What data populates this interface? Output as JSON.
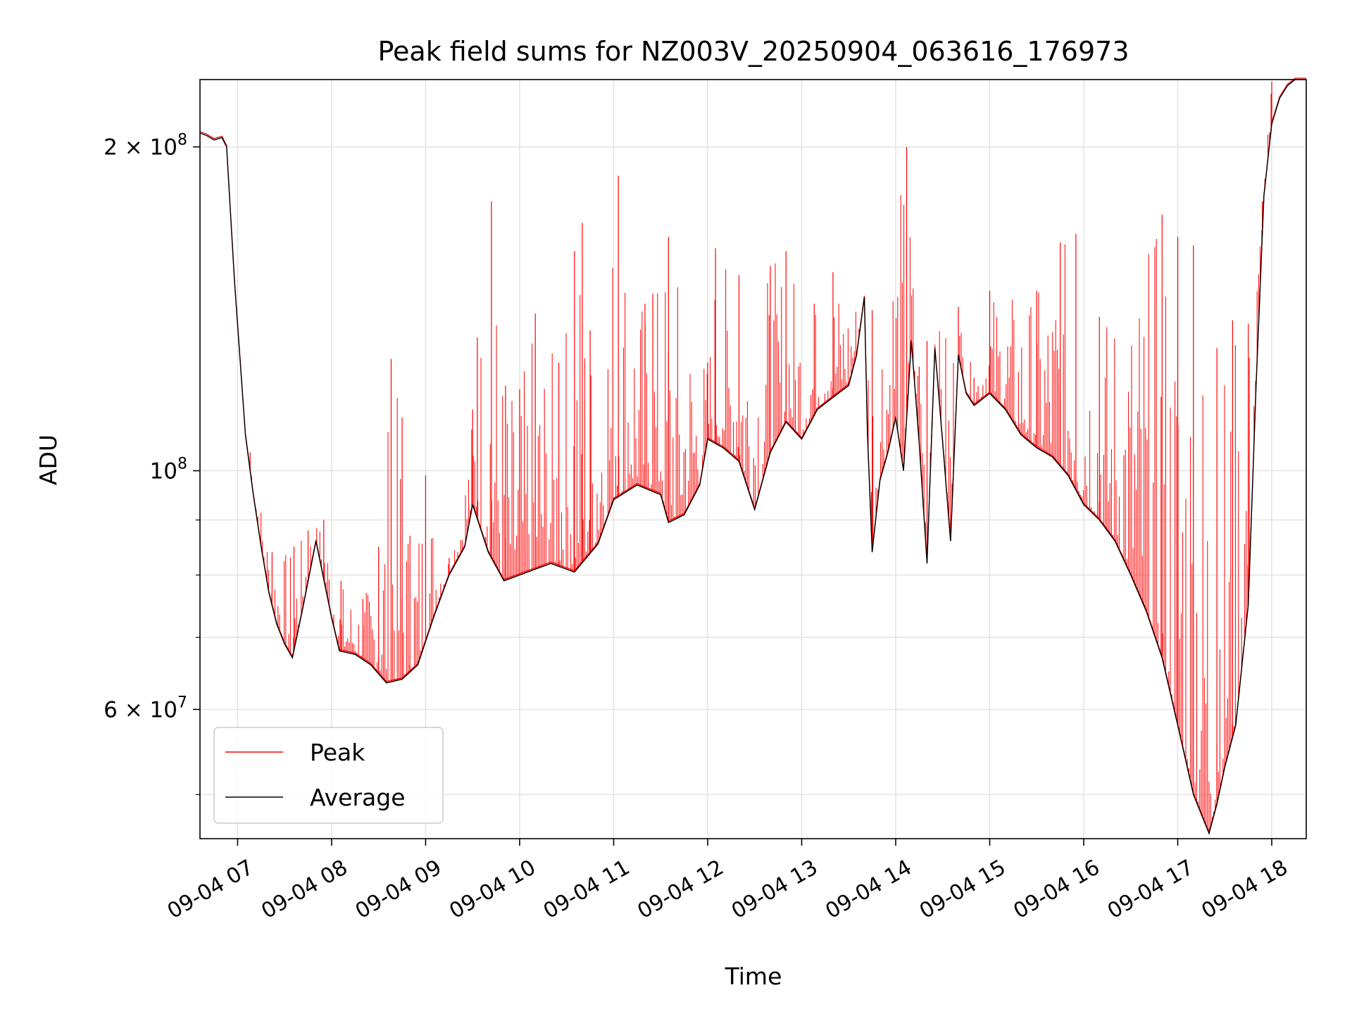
{
  "chart_data": {
    "type": "line",
    "title": "Peak field sums for NZ003V_20250904_063616_176973",
    "xlabel": "Time",
    "ylabel": "ADU",
    "y_scale": "log",
    "grid": true,
    "legend_position": "lower-left",
    "xlim": [
      "2025-09-04 06:36",
      "2025-09-04 18:22"
    ],
    "ylim": [
      45500000,
      231000000
    ],
    "x_ticks": [
      {
        "label": "09-04 07",
        "time": "2025-09-04 07:00"
      },
      {
        "label": "09-04 08",
        "time": "2025-09-04 08:00"
      },
      {
        "label": "09-04 09",
        "time": "2025-09-04 09:00"
      },
      {
        "label": "09-04 10",
        "time": "2025-09-04 10:00"
      },
      {
        "label": "09-04 11",
        "time": "2025-09-04 11:00"
      },
      {
        "label": "09-04 12",
        "time": "2025-09-04 12:00"
      },
      {
        "label": "09-04 13",
        "time": "2025-09-04 13:00"
      },
      {
        "label": "09-04 14",
        "time": "2025-09-04 14:00"
      },
      {
        "label": "09-04 15",
        "time": "2025-09-04 15:00"
      },
      {
        "label": "09-04 16",
        "time": "2025-09-04 16:00"
      },
      {
        "label": "09-04 17",
        "time": "2025-09-04 17:00"
      },
      {
        "label": "09-04 18",
        "time": "2025-09-04 18:00"
      }
    ],
    "y_major_ticks": [
      {
        "base": "2 × 10",
        "exp": "8",
        "value": 200000000
      },
      {
        "base": "10",
        "exp": "8",
        "value": 100000000
      },
      {
        "base": "6 × 10",
        "exp": "7",
        "value": 60000000
      }
    ],
    "y_minor_ticks": [
      50000000,
      70000000,
      80000000,
      90000000
    ],
    "series": [
      {
        "name": "Average",
        "color": "#000000",
        "x": [
          "2025-09-04 06:36",
          "2025-09-04 06:40",
          "2025-09-04 06:45",
          "2025-09-04 06:50",
          "2025-09-04 06:53",
          "2025-09-04 06:58",
          "2025-09-04 07:05",
          "2025-09-04 07:10",
          "2025-09-04 07:15",
          "2025-09-04 07:20",
          "2025-09-04 07:25",
          "2025-09-04 07:30",
          "2025-09-04 07:35",
          "2025-09-04 07:42",
          "2025-09-04 07:50",
          "2025-09-04 08:00",
          "2025-09-04 08:05",
          "2025-09-04 08:15",
          "2025-09-04 08:25",
          "2025-09-04 08:35",
          "2025-09-04 08:45",
          "2025-09-04 08:55",
          "2025-09-04 09:05",
          "2025-09-04 09:15",
          "2025-09-04 09:25",
          "2025-09-04 09:30",
          "2025-09-04 09:40",
          "2025-09-04 09:50",
          "2025-09-04 10:00",
          "2025-09-04 10:10",
          "2025-09-04 10:20",
          "2025-09-04 10:35",
          "2025-09-04 10:50",
          "2025-09-04 11:00",
          "2025-09-04 11:15",
          "2025-09-04 11:30",
          "2025-09-04 11:35",
          "2025-09-04 11:45",
          "2025-09-04 11:55",
          "2025-09-04 12:00",
          "2025-09-04 12:10",
          "2025-09-04 12:20",
          "2025-09-04 12:30",
          "2025-09-04 12:40",
          "2025-09-04 12:50",
          "2025-09-04 13:00",
          "2025-09-04 13:10",
          "2025-09-04 13:20",
          "2025-09-04 13:30",
          "2025-09-04 13:35",
          "2025-09-04 13:40",
          "2025-09-04 13:42",
          "2025-09-04 13:45",
          "2025-09-04 13:50",
          "2025-09-04 13:55",
          "2025-09-04 14:00",
          "2025-09-04 14:05",
          "2025-09-04 14:10",
          "2025-09-04 14:15",
          "2025-09-04 14:20",
          "2025-09-04 14:25",
          "2025-09-04 14:30",
          "2025-09-04 14:35",
          "2025-09-04 14:40",
          "2025-09-04 14:45",
          "2025-09-04 14:50",
          "2025-09-04 15:00",
          "2025-09-04 15:10",
          "2025-09-04 15:20",
          "2025-09-04 15:30",
          "2025-09-04 15:40",
          "2025-09-04 15:50",
          "2025-09-04 16:00",
          "2025-09-04 16:10",
          "2025-09-04 16:20",
          "2025-09-04 16:30",
          "2025-09-04 16:40",
          "2025-09-04 16:50",
          "2025-09-04 17:00",
          "2025-09-04 17:10",
          "2025-09-04 17:20",
          "2025-09-04 17:25",
          "2025-09-04 17:30",
          "2025-09-04 17:37",
          "2025-09-04 17:45",
          "2025-09-04 17:50",
          "2025-09-04 17:55",
          "2025-09-04 18:00",
          "2025-09-04 18:05",
          "2025-09-04 18:10",
          "2025-09-04 18:15",
          "2025-09-04 18:22"
        ],
        "y": [
          206000000,
          205000000,
          203000000,
          204000000,
          200000000,
          150000000,
          108000000,
          95000000,
          85000000,
          77000000,
          72000000,
          69000000,
          67000000,
          75000000,
          86000000,
          73000000,
          68000000,
          67500000,
          66000000,
          63500000,
          64000000,
          66000000,
          73000000,
          80000000,
          85000000,
          93000000,
          84000000,
          79000000,
          80000000,
          81000000,
          82000000,
          80500000,
          85500000,
          94000000,
          97000000,
          95000000,
          89500000,
          91000000,
          97000000,
          107000000,
          105000000,
          102000000,
          92000000,
          104000000,
          111000000,
          107000000,
          114000000,
          117000000,
          120000000,
          128000000,
          145000000,
          108000000,
          84000000,
          98000000,
          104000000,
          112000000,
          100000000,
          132000000,
          106000000,
          82000000,
          130000000,
          106000000,
          86000000,
          128000000,
          118000000,
          115000000,
          118000000,
          114000000,
          108000000,
          105000000,
          103000000,
          99000000,
          93000000,
          90000000,
          86000000,
          80000000,
          74000000,
          67000000,
          58000000,
          50000000,
          46000000,
          49000000,
          53000000,
          58000000,
          75000000,
          120000000,
          180000000,
          210000000,
          222000000,
          228000000,
          231000000,
          231000000
        ]
      },
      {
        "name": "Peak",
        "color": "#ff0000",
        "x": [
          "2025-09-04 07:08",
          "2025-09-04 07:22",
          "2025-09-04 07:36",
          "2025-09-04 07:45",
          "2025-09-04 07:55",
          "2025-09-04 08:06",
          "2025-09-04 08:20",
          "2025-09-04 08:30",
          "2025-09-04 08:38",
          "2025-09-04 08:45",
          "2025-09-04 08:50",
          "2025-09-04 09:00",
          "2025-09-04 09:15",
          "2025-09-04 09:30",
          "2025-09-04 09:33",
          "2025-09-04 09:42",
          "2025-09-04 09:51",
          "2025-09-04 10:00",
          "2025-09-04 10:10",
          "2025-09-04 10:25",
          "2025-09-04 10:35",
          "2025-09-04 10:40",
          "2025-09-04 10:45",
          "2025-09-04 11:03",
          "2025-09-04 11:20",
          "2025-09-04 11:25",
          "2025-09-04 11:35",
          "2025-09-04 12:00",
          "2025-09-04 12:05",
          "2025-09-04 12:20",
          "2025-09-04 12:40",
          "2025-09-04 12:50",
          "2025-09-04 13:08",
          "2025-09-04 13:20",
          "2025-09-04 13:45",
          "2025-09-04 14:07",
          "2025-09-04 14:15",
          "2025-09-04 14:20",
          "2025-09-04 14:40",
          "2025-09-04 14:50",
          "2025-09-04 15:00",
          "2025-09-04 15:30",
          "2025-09-04 15:45",
          "2025-09-04 15:55",
          "2025-09-04 16:10",
          "2025-09-04 16:50",
          "2025-09-04 17:00",
          "2025-09-04 17:10",
          "2025-09-04 17:25",
          "2025-09-04 17:35",
          "2025-09-04 17:45",
          "2025-09-04 17:54",
          "2025-09-04 18:00"
        ],
        "y": [
          104000000,
          84000000,
          85000000,
          88000000,
          90000000,
          79000000,
          76000000,
          85000000,
          127000000,
          112000000,
          87000000,
          99000000,
          83000000,
          114000000,
          133000000,
          178000000,
          120000000,
          119000000,
          140000000,
          126000000,
          160000000,
          170000000,
          135000000,
          188000000,
          143000000,
          146000000,
          165000000,
          126000000,
          161000000,
          152000000,
          155000000,
          160000000,
          143000000,
          153000000,
          141000000,
          200000000,
          125000000,
          132000000,
          142000000,
          122000000,
          147000000,
          147000000,
          163000000,
          166000000,
          139000000,
          173000000,
          165000000,
          162000000,
          130000000,
          138000000,
          137000000,
          178000000,
          230000000
        ]
      }
    ]
  }
}
